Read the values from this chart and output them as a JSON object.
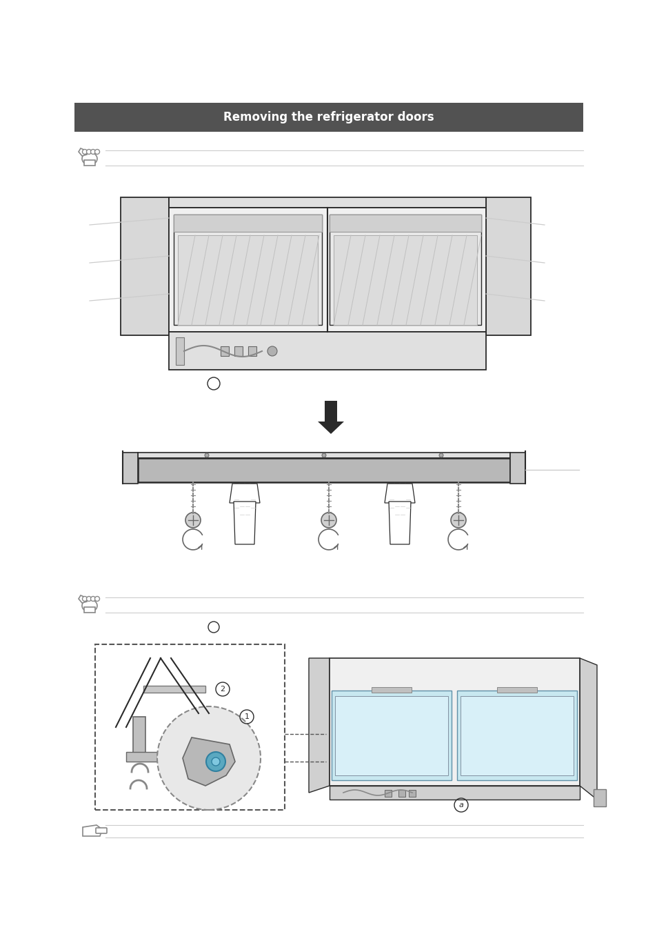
{
  "bg_color": "#ffffff",
  "header_bg": "#525252",
  "header_text": "Removing the refrigerator doors",
  "header_text_color": "#ffffff",
  "dark": "#2a2a2a",
  "mid_gray": "#888888",
  "light_gray": "#cccccc",
  "panel_gray": "#b8b8b8",
  "body_light": "#e8e8e8",
  "body_mid": "#d0d0d0",
  "line_ext_color": "#aaaaaa",
  "blue_light": "#c8e8f0",
  "blue_mid": "#a8d8e8",
  "skin": "#e8c8a0",
  "skin_dark": "#c8a870"
}
